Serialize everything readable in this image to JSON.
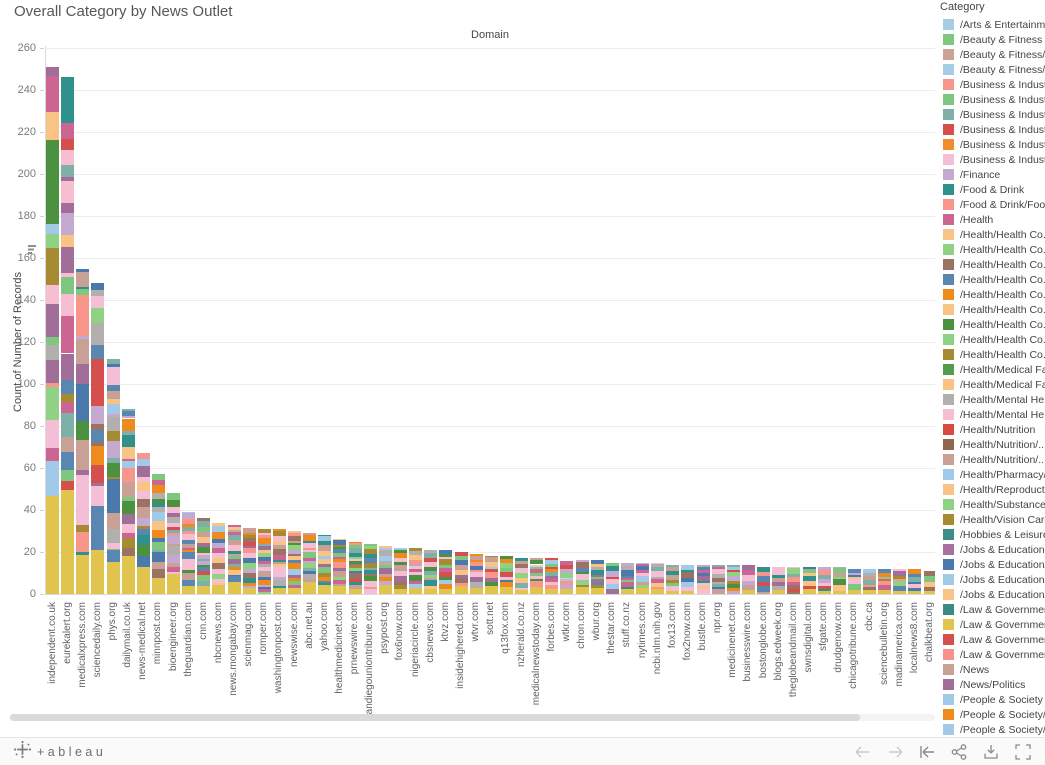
{
  "page": {
    "title": "Overall Category by News Outlet"
  },
  "chart_data": {
    "type": "bar",
    "stacked": true,
    "title": "Overall Category by News Outlet",
    "xlabel": "Domain",
    "ylabel": "Count of Number of Records",
    "ylim": [
      0,
      260
    ],
    "yticks": [
      0,
      20,
      40,
      60,
      80,
      100,
      120,
      140,
      160,
      180,
      200,
      220,
      240,
      260
    ],
    "grid": true,
    "legend_position": "right",
    "categories": [
      "independent.co.uk",
      "eurekalert.org",
      "medicalxpress.com",
      "sciencedaily.com",
      "phys.org",
      "dailymail.co.uk",
      "news-medical.net",
      "minnpost.com",
      "bioengineer.org",
      "theguardian.com",
      "cnn.com",
      "nbcnews.com",
      "news.mongabay.com",
      "scienmag.com",
      "romper.com",
      "washingtonpost.com",
      "newswise.com",
      "abc.net.au",
      "yahoo.com",
      "healthmedicinet.com",
      "prnewswire.com",
      "sandiegouniontribune.com",
      "psypost.org",
      "fox6now.com",
      "nigeriacircle.com",
      "cbsnews.com",
      "ktvz.com",
      "insidehighered.com",
      "wtvr.com",
      "sott.net",
      "q13fox.com",
      "nzherald.co.nz",
      "medicalnewstoday.com",
      "forbes.com",
      "wtkr.com",
      "chron.com",
      "wbur.org",
      "thestar.com",
      "stuff.co.nz",
      "nytimes.com",
      "ncbi.nlm.nih.gov",
      "fox13.com",
      "fox2now.com",
      "bustle.com",
      "npr.org",
      "medicinenet.com",
      "businesswire.com",
      "bostonglobe.com",
      "blogs.edweek.org",
      "theglobeandmail.com",
      "swnsdigital.com",
      "sfgate.com",
      "drudgenow.com",
      "chicagotribune.com",
      "cbc.ca",
      "sciencebulletin.org",
      "madinamerica.com",
      "localnews8.com",
      "chalkbeat.org"
    ],
    "values": [
      251,
      246,
      155,
      148,
      112,
      88,
      67,
      57,
      48,
      39,
      36,
      34,
      33,
      32,
      31,
      31,
      30,
      29,
      28,
      26,
      25,
      24,
      23,
      22,
      22,
      21,
      21,
      20,
      19,
      18,
      18,
      17,
      17,
      17,
      16,
      16,
      16,
      15,
      15,
      15,
      15,
      14,
      14,
      14,
      14,
      14,
      14,
      13,
      13,
      13,
      13,
      13,
      13,
      12,
      12,
      12,
      12,
      12,
      11
    ]
  },
  "palette": [
    "#e0c44e",
    "#a2c9e7",
    "#fac386",
    "#cc6591",
    "#7fc77f",
    "#f8968c",
    "#5a86b2",
    "#ef8a1c",
    "#c8a096",
    "#30908c",
    "#d5504c",
    "#8fd284",
    "#9b7362",
    "#c4aad0",
    "#f4bed6",
    "#4c9140",
    "#a78b33",
    "#b3afac",
    "#a16d99",
    "#4c79ab",
    "#7fb0a7",
    "#f6bed0"
  ],
  "legend": {
    "title": "Category",
    "items": [
      {
        "label": "/Arts & Entertainm...",
        "color": "#a5cde3"
      },
      {
        "label": "/Beauty & Fitness",
        "color": "#7fc77f"
      },
      {
        "label": "/Beauty & Fitness/...",
        "color": "#c9a494"
      },
      {
        "label": "/Beauty & Fitness/...",
        "color": "#a5cde3"
      },
      {
        "label": "/Business & Indust...",
        "color": "#f8968c"
      },
      {
        "label": "/Business & Indust...",
        "color": "#7fc77f"
      },
      {
        "label": "/Business & Indust...",
        "color": "#7fb0a7"
      },
      {
        "label": "/Business & Indust...",
        "color": "#d5504c"
      },
      {
        "label": "/Business & Indust...",
        "color": "#f08b2e"
      },
      {
        "label": "/Business & Indust...",
        "color": "#f4bed6"
      },
      {
        "label": "/Finance",
        "color": "#c4aad0"
      },
      {
        "label": "/Food & Drink",
        "color": "#30908c"
      },
      {
        "label": "/Food & Drink/Foo...",
        "color": "#f8968c"
      },
      {
        "label": "/Health",
        "color": "#cc6591"
      },
      {
        "label": "/Health/Health Co...",
        "color": "#fac386"
      },
      {
        "label": "/Health/Health Co...",
        "color": "#8fd284"
      },
      {
        "label": "/Health/Health Co...",
        "color": "#9b7362"
      },
      {
        "label": "/Health/Health Co...",
        "color": "#5a86b2"
      },
      {
        "label": "/Health/Health Co...",
        "color": "#ef8a1c"
      },
      {
        "label": "/Health/Health Co...",
        "color": "#fac386"
      },
      {
        "label": "/Health/Health Co...",
        "color": "#4c9140"
      },
      {
        "label": "/Health/Health Co...",
        "color": "#8fd284"
      },
      {
        "label": "/Health/Health Co...",
        "color": "#a78b33"
      },
      {
        "label": "/Health/Medical Fa...",
        "color": "#529c50"
      },
      {
        "label": "/Health/Medical Fa...",
        "color": "#fac386"
      },
      {
        "label": "/Health/Mental He...",
        "color": "#b3afac"
      },
      {
        "label": "/Health/Mental He...",
        "color": "#f6bed0"
      },
      {
        "label": "/Health/Nutrition",
        "color": "#d94a42"
      },
      {
        "label": "/Health/Nutrition/...",
        "color": "#90654c"
      },
      {
        "label": "/Health/Nutrition/...",
        "color": "#c8a096"
      },
      {
        "label": "/Health/Pharmacy/...",
        "color": "#a2c9e7"
      },
      {
        "label": "/Health/Reproduct...",
        "color": "#fac386"
      },
      {
        "label": "/Health/Substance...",
        "color": "#8fd284"
      },
      {
        "label": "/Health/Vision Care",
        "color": "#a78b33"
      },
      {
        "label": "/Hobbies & Leisure",
        "color": "#3d8c89"
      },
      {
        "label": "/Jobs & Education",
        "color": "#a96f9e"
      },
      {
        "label": "/Jobs & Education/...",
        "color": "#4c79ab"
      },
      {
        "label": "/Jobs & Education/...",
        "color": "#a2c9e7"
      },
      {
        "label": "/Jobs & Education/...",
        "color": "#fac386"
      },
      {
        "label": "/Law & Government",
        "color": "#3d8a82"
      },
      {
        "label": "/Law & Governmen...",
        "color": "#e0c44e"
      },
      {
        "label": "/Law & Governmen...",
        "color": "#d5504c"
      },
      {
        "label": "/Law & Governmen...",
        "color": "#f8918b"
      },
      {
        "label": "/News",
        "color": "#c8a096"
      },
      {
        "label": "/News/Politics",
        "color": "#a16d99"
      },
      {
        "label": "/People & Society",
        "color": "#a2c9e7"
      },
      {
        "label": "/People & Society/...",
        "color": "#ef8a1c"
      },
      {
        "label": "/People & Society/...",
        "color": "#a2c9e7"
      },
      {
        "label": "",
        "color": "#4c9140"
      }
    ]
  },
  "toolbar": {
    "logo_text": "+ableau",
    "buttons": [
      {
        "name": "undo",
        "disabled": true
      },
      {
        "name": "redo",
        "disabled": true
      },
      {
        "name": "reset",
        "disabled": false
      },
      {
        "name": "share",
        "disabled": false
      },
      {
        "name": "download",
        "disabled": false
      },
      {
        "name": "fullscreen",
        "disabled": false
      }
    ]
  }
}
